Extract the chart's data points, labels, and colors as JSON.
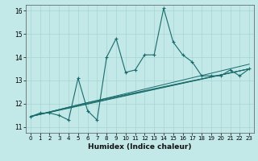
{
  "title": "",
  "xlabel": "Humidex (Indice chaleur)",
  "bg_color": "#c2e8e8",
  "line_color": "#1a6b6b",
  "grid_color": "#a8d4d4",
  "xlim": [
    -0.5,
    23.5
  ],
  "ylim": [
    10.75,
    16.25
  ],
  "yticks": [
    11,
    12,
    13,
    14,
    15,
    16
  ],
  "xticks": [
    0,
    1,
    2,
    3,
    4,
    5,
    6,
    7,
    8,
    9,
    10,
    11,
    12,
    13,
    14,
    15,
    16,
    17,
    18,
    19,
    20,
    21,
    22,
    23
  ],
  "main_x": [
    0,
    1,
    2,
    3,
    4,
    5,
    6,
    7,
    8,
    9,
    10,
    11,
    12,
    13,
    14,
    15,
    16,
    17,
    18,
    19,
    20,
    21,
    22,
    23
  ],
  "main_y": [
    11.45,
    11.6,
    11.6,
    11.5,
    11.3,
    13.1,
    11.7,
    11.3,
    14.0,
    14.8,
    13.35,
    13.45,
    14.1,
    14.1,
    16.1,
    14.65,
    14.1,
    13.8,
    13.2,
    13.2,
    13.2,
    13.45,
    13.2,
    13.5
  ],
  "line2_x": [
    0,
    23
  ],
  "line2_y": [
    11.45,
    13.5
  ],
  "line3_x": [
    0,
    6,
    23
  ],
  "line3_y": [
    11.45,
    12.05,
    13.5
  ],
  "line4_x": [
    0,
    4,
    23
  ],
  "line4_y": [
    11.45,
    11.85,
    13.7
  ],
  "line5_x": [
    0,
    7,
    23
  ],
  "line5_y": [
    11.45,
    12.1,
    13.5
  ]
}
